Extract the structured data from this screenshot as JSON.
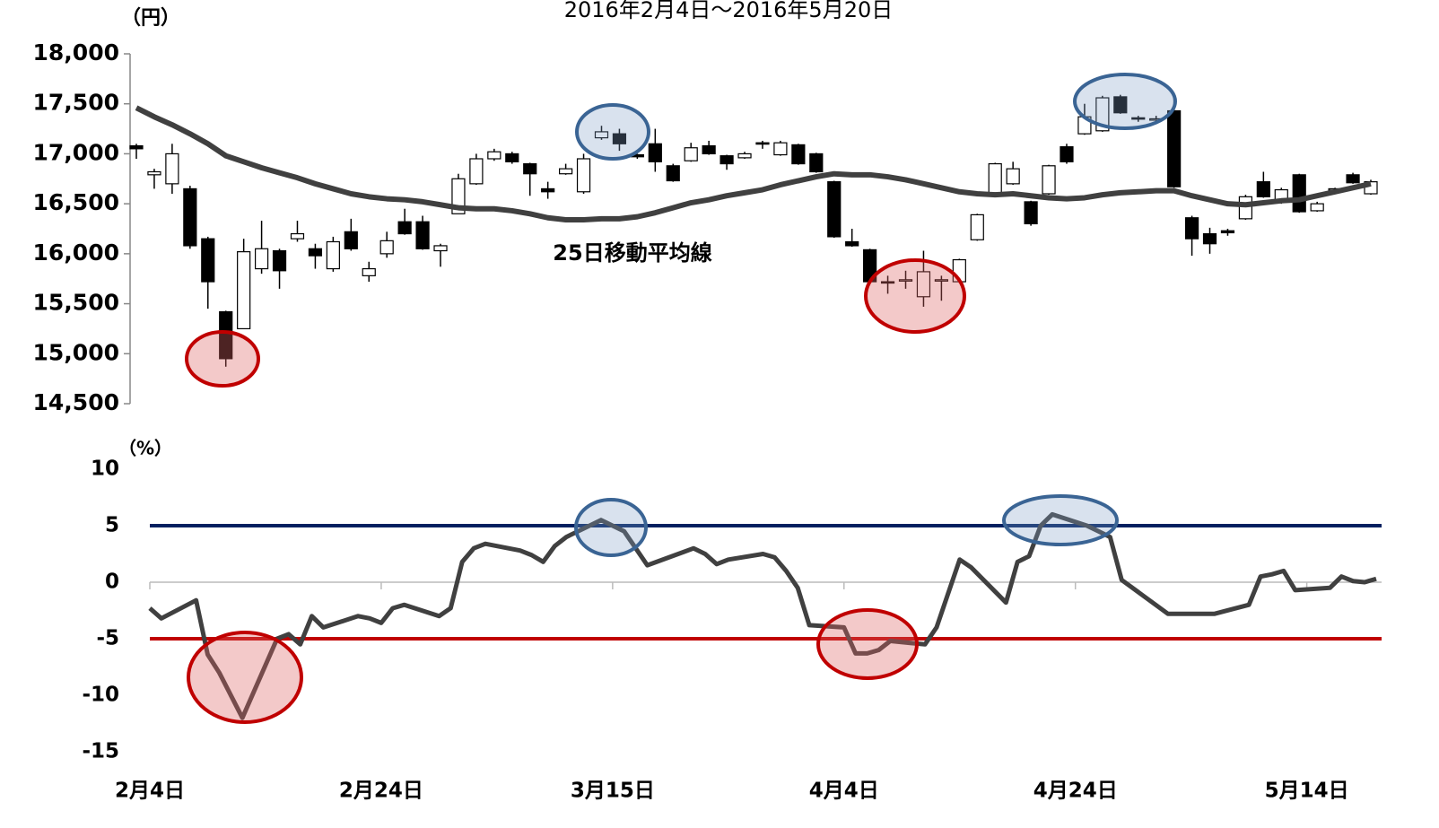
{
  "chart_data": [
    {
      "type": "candlestick",
      "title": "2016年2月4日～2016年5月20日",
      "y_label": "（円）",
      "annotation": "25日移動平均線",
      "open": [
        17080,
        16790,
        16700,
        16650,
        16150,
        15420,
        15250,
        15850,
        16030,
        16150,
        16050,
        15850,
        16220,
        15780,
        16000,
        16320,
        16320,
        16030,
        16400,
        16700,
        16950,
        17000,
        16900,
        16650,
        16800,
        16620,
        17160,
        17200,
        16990,
        17100,
        16880,
        16930,
        17080,
        16980,
        16960,
        17110,
        16990,
        17090,
        17000,
        16720,
        16120,
        16040,
        15720,
        15740,
        15570,
        15740,
        15720,
        16140,
        16610,
        16700,
        16520,
        16600,
        17070,
        17200,
        17230,
        17570,
        17360,
        17350,
        17430,
        16360,
        16200,
        16230,
        16350,
        16720,
        16520,
        16790,
        16430,
        16640,
        16790,
        16600
      ],
      "high": [
        17100,
        16850,
        17100,
        16680,
        16170,
        15430,
        16150,
        16330,
        16050,
        16330,
        16100,
        16170,
        16350,
        15920,
        16220,
        16450,
        16380,
        16100,
        16800,
        17000,
        17050,
        17020,
        16910,
        16720,
        16900,
        17000,
        17280,
        17250,
        17000,
        17250,
        16900,
        17110,
        17130,
        16990,
        17020,
        17130,
        17130,
        17100,
        17010,
        16730,
        16250,
        16050,
        15780,
        15830,
        16030,
        15780,
        15950,
        16400,
        16910,
        16920,
        16530,
        16890,
        17100,
        17500,
        17580,
        17590,
        17380,
        17380,
        17560,
        16380,
        16260,
        16250,
        16590,
        16820,
        16660,
        16800,
        16520,
        16660,
        16810,
        16740
      ],
      "low": [
        16950,
        16650,
        16600,
        16050,
        15450,
        14870,
        15250,
        15800,
        15650,
        16120,
        15850,
        15820,
        16030,
        15720,
        15960,
        16190,
        16040,
        15870,
        16400,
        16690,
        16930,
        16900,
        16580,
        16550,
        16790,
        16600,
        17140,
        17030,
        16950,
        16820,
        16720,
        16920,
        16990,
        16840,
        16950,
        17050,
        16980,
        16890,
        16810,
        16160,
        16070,
        15700,
        15600,
        15650,
        15470,
        15530,
        15710,
        16130,
        16600,
        16690,
        16280,
        16590,
        16900,
        17190,
        17220,
        17400,
        17320,
        17320,
        16660,
        15980,
        16000,
        16180,
        16340,
        16560,
        16500,
        16410,
        16420,
        16630,
        16700,
        16590
      ],
      "close": [
        17050,
        16820,
        17000,
        16080,
        15720,
        14950,
        16020,
        16050,
        15830,
        16200,
        15980,
        16120,
        16050,
        15850,
        16130,
        16200,
        16050,
        16080,
        16750,
        16950,
        17020,
        16920,
        16800,
        16620,
        16850,
        16950,
        17220,
        17100,
        16970,
        16920,
        16730,
        17060,
        17000,
        16900,
        17000,
        17100,
        17110,
        16900,
        16820,
        16170,
        16080,
        15720,
        15710,
        15740,
        15820,
        15740,
        15940,
        16390,
        16900,
        16850,
        16300,
        16880,
        16920,
        17370,
        17560,
        17410,
        17350,
        17350,
        16670,
        16150,
        16100,
        16210,
        16570,
        16570,
        16640,
        16420,
        16500,
        16650,
        16710,
        16720
      ],
      "moving_average": [
        17460,
        17370,
        17290,
        17200,
        17100,
        16980,
        16920,
        16860,
        16810,
        16760,
        16700,
        16650,
        16600,
        16570,
        16550,
        16540,
        16520,
        16490,
        16460,
        16450,
        16450,
        16430,
        16400,
        16360,
        16340,
        16340,
        16350,
        16350,
        16370,
        16410,
        16460,
        16510,
        16540,
        16580,
        16610,
        16640,
        16690,
        16730,
        16770,
        16800,
        16790,
        16790,
        16770,
        16740,
        16700,
        16660,
        16620,
        16600,
        16590,
        16600,
        16580,
        16560,
        16550,
        16560,
        16590,
        16610,
        16620,
        16630,
        16630,
        16580,
        16540,
        16500,
        16490,
        16510,
        16530,
        16540,
        16580,
        16620,
        16660,
        16700
      ],
      "ma_color": "#404040",
      "ylim": [
        14500,
        18000
      ],
      "yticks": [
        {
          "value": 14500,
          "label": "14,500"
        },
        {
          "value": 15000,
          "label": "15,000"
        },
        {
          "value": 15500,
          "label": "15,500"
        },
        {
          "value": 16000,
          "label": "16,000"
        },
        {
          "value": 16500,
          "label": "16,500"
        },
        {
          "value": 17000,
          "label": "17,000"
        },
        {
          "value": 17500,
          "label": "17,500"
        },
        {
          "value": 18000,
          "label": "18,000"
        }
      ]
    },
    {
      "type": "line",
      "y_label": "（%）",
      "x": [
        0,
        1,
        4,
        5,
        6,
        8,
        11,
        12,
        13,
        14,
        15,
        18,
        19,
        20,
        21,
        22,
        25,
        26,
        27,
        28,
        29,
        32,
        33,
        34,
        35,
        36,
        39,
        40,
        41,
        42,
        43,
        47,
        48,
        49,
        50,
        53,
        54,
        55,
        56,
        57,
        60,
        61,
        62,
        63,
        64,
        67,
        68,
        69,
        70,
        71,
        74,
        75,
        76,
        77,
        78,
        81,
        82,
        83,
        84,
        88,
        92,
        95,
        96,
        97,
        98,
        99,
        102,
        103,
        104,
        105,
        106
      ],
      "series": [
        {
          "color": "#404040",
          "values": [
            -2.3,
            -3.2,
            -1.6,
            -6.4,
            -8,
            -12,
            -5,
            -4.6,
            -5.5,
            -3,
            -4,
            -3,
            -3.2,
            -3.6,
            -2.3,
            -2,
            -3,
            -2.3,
            1.8,
            3,
            3.4,
            2.8,
            2.4,
            1.8,
            3.2,
            4,
            5.5,
            5,
            4.5,
            3,
            1.5,
            3,
            2.5,
            1.6,
            2,
            2.5,
            2.2,
            1,
            -0.5,
            -3.8,
            -4,
            -6.3,
            -6.3,
            -6,
            -5.2,
            -5.5,
            -4,
            -1,
            2,
            1.3,
            -1.8,
            1.8,
            2.3,
            5,
            6,
            5,
            4.5,
            4,
            0.2,
            -2.8,
            -2.8,
            -2,
            0.5,
            0.7,
            1,
            -0.7,
            -0.5,
            0.5,
            0.1,
            0,
            0.3
          ]
        }
      ],
      "reference_lines": [
        {
          "value": 5,
          "color": "#002060"
        },
        {
          "value": -5,
          "color": "#c00000"
        }
      ],
      "xlim": [
        0,
        106
      ],
      "xticks": [
        {
          "value": 0,
          "label": "2月4日"
        },
        {
          "value": 20,
          "label": "2月24日"
        },
        {
          "value": 40,
          "label": "3月15日"
        },
        {
          "value": 60,
          "label": "4月4日"
        },
        {
          "value": 80,
          "label": "4月24日"
        },
        {
          "value": 100,
          "label": "5月14日"
        }
      ],
      "ylim": [
        -15,
        10
      ],
      "yticks": [
        -15,
        -10,
        -5,
        0,
        5,
        10
      ]
    }
  ]
}
